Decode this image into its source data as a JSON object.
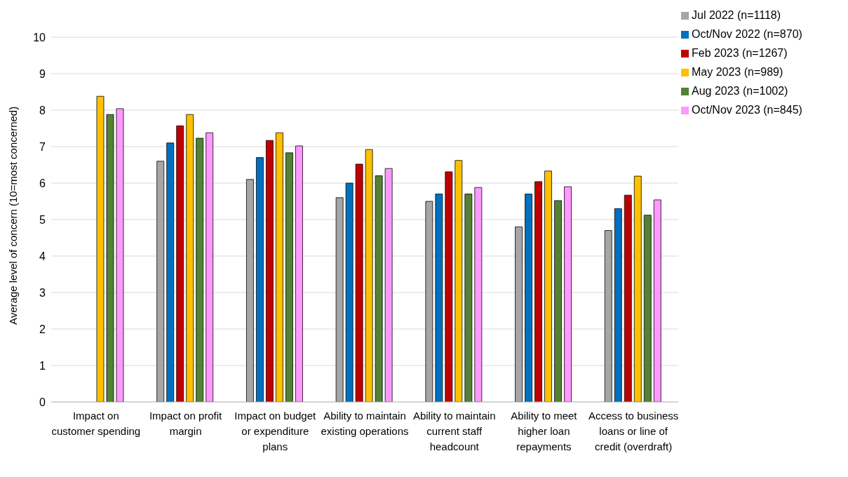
{
  "chart_data": {
    "type": "bar",
    "ylabel": "Average level of concern (10=most concerned)",
    "categories": [
      "Impact on customer spending",
      "Impact on profit margin",
      "Impact on budget or expenditure plans",
      "Ability to maintain existing operations",
      "Ability to maintain current staff headcount",
      "Ability to meet higher loan repayments",
      "Access to business loans or line of credit (overdraft)"
    ],
    "series": [
      {
        "name": "Jul 2022 (n=1118)",
        "color": "#a6a6a6",
        "values": [
          null,
          6.6,
          6.1,
          5.6,
          5.5,
          4.8,
          4.7
        ]
      },
      {
        "name": "Oct/Nov 2022 (n=870)",
        "color": "#0070c0",
        "values": [
          null,
          7.1,
          6.7,
          6.0,
          5.7,
          5.7,
          5.3
        ]
      },
      {
        "name": "Feb 2023 (n=1267)",
        "color": "#c00000",
        "values": [
          null,
          7.57,
          7.17,
          6.52,
          6.31,
          6.04,
          5.67
        ]
      },
      {
        "name": "May 2023 (n=989)",
        "color": "#ffc000",
        "values": [
          8.38,
          7.88,
          7.38,
          6.92,
          6.62,
          6.33,
          6.19
        ]
      },
      {
        "name": "Aug 2023 (n=1002)",
        "color": "#548235",
        "values": [
          7.88,
          7.23,
          6.83,
          6.2,
          5.7,
          5.52,
          5.12
        ]
      },
      {
        "name": "Oct/Nov 2023 (n=845)",
        "color": "#ff99ff",
        "values": [
          8.04,
          7.38,
          7.02,
          6.4,
          5.88,
          5.9,
          5.54
        ]
      }
    ],
    "ylim": [
      0,
      10
    ],
    "yticks": [
      0,
      1,
      2,
      3,
      4,
      5,
      6,
      7,
      8,
      9,
      10
    ],
    "grid": "y",
    "legend": "top right"
  }
}
